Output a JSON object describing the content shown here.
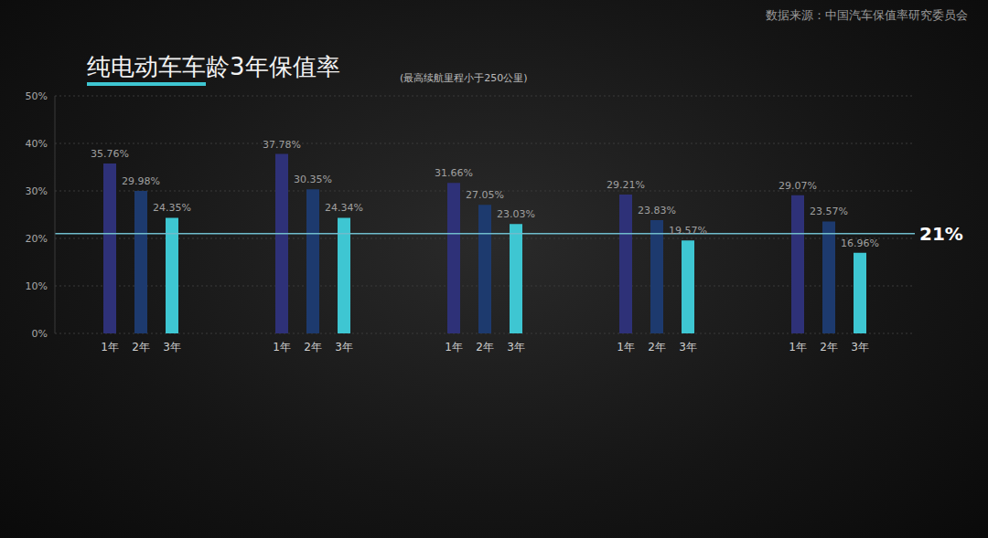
{
  "chart_data": {
    "type": "bar",
    "title": "纯电动车车龄3年保值率",
    "subtitle": "(最高续航里程小于250公里)",
    "source": "数据来源：中国汽车保值率研究委员会",
    "categories": [
      null,
      null,
      null,
      null,
      null
    ],
    "series": [
      {
        "name": "1年",
        "color": "#2e3178",
        "values": [
          35.76,
          37.78,
          31.66,
          29.21,
          29.07
        ],
        "value_labels": [
          "35.76%",
          "37.78%",
          "31.66%",
          "29.21%",
          "29.07%"
        ]
      },
      {
        "name": "2年",
        "color": "#1d3a6e",
        "values": [
          29.98,
          30.35,
          27.05,
          23.83,
          23.57
        ],
        "value_labels": [
          "29.98%",
          "30.35%",
          "27.05%",
          "23.83%",
          "23.57%"
        ]
      },
      {
        "name": "3年",
        "color": "#3ec6d2",
        "values": [
          24.35,
          24.34,
          23.03,
          19.57,
          16.96
        ],
        "value_labels": [
          "24.35%",
          "24.34%",
          "23.03%",
          "19.57%",
          "16.96%"
        ]
      }
    ],
    "ylim": [
      0,
      50
    ],
    "yticks": [
      {
        "value": 0,
        "label": "0%"
      },
      {
        "value": 10,
        "label": "10%"
      },
      {
        "value": 20,
        "label": "20%"
      },
      {
        "value": 30,
        "label": "30%"
      },
      {
        "value": 40,
        "label": "40%"
      },
      {
        "value": 50,
        "label": "50%"
      }
    ],
    "grid": true,
    "data_labels": true,
    "tick_labels": "y",
    "annotations": [
      {
        "y": 21,
        "label": "21%"
      }
    ]
  }
}
